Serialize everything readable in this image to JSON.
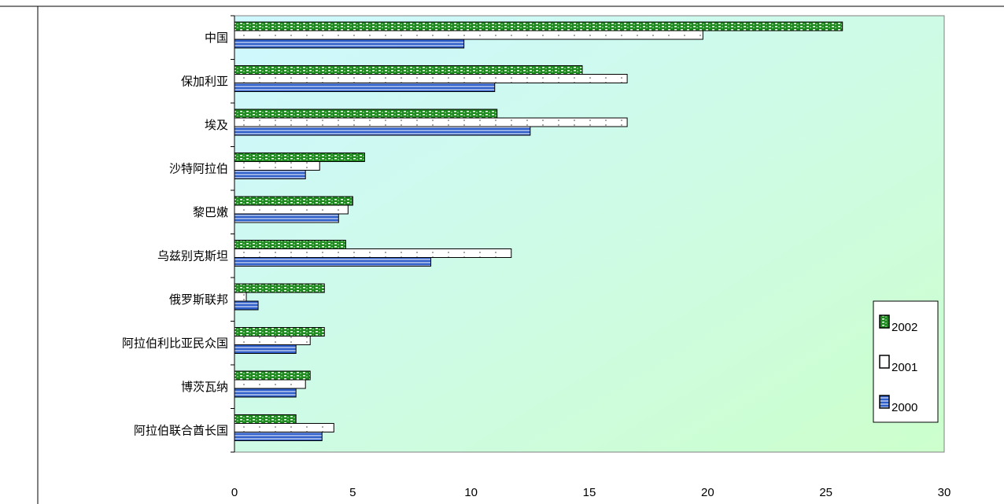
{
  "chart_data": {
    "type": "bar",
    "orientation": "horizontal",
    "categories": [
      "中国",
      "保加利亚",
      "埃及",
      "沙特阿拉伯",
      "黎巴嫩",
      "乌兹别克斯坦",
      "俄罗斯联邦",
      "阿拉伯利比亚民众国",
      "博茨瓦纳",
      "阿拉伯联合酋长国"
    ],
    "series": [
      {
        "name": "2002",
        "values": [
          25.7,
          14.7,
          11.1,
          5.5,
          5.0,
          4.7,
          3.8,
          3.8,
          3.2,
          2.6
        ]
      },
      {
        "name": "2001",
        "values": [
          19.8,
          16.6,
          16.6,
          3.6,
          4.8,
          11.7,
          0.5,
          3.2,
          3.0,
          4.2
        ]
      },
      {
        "name": "2000",
        "values": [
          9.7,
          11.0,
          12.5,
          3.0,
          4.4,
          8.3,
          1.0,
          2.6,
          2.6,
          3.7
        ]
      }
    ],
    "xlim": [
      0,
      30
    ],
    "x_ticks": [
      "0",
      "5",
      "10",
      "15",
      "20",
      "25",
      "30"
    ],
    "xlabel": "",
    "ylabel": "",
    "title": "",
    "legend_position": "right",
    "grid": false,
    "series_colors": {
      "2002": "#1a7a1a",
      "2001": "#ffffff",
      "2000": "#2f5fc8"
    },
    "plot_background": "gradient cyan-to-light-green"
  }
}
